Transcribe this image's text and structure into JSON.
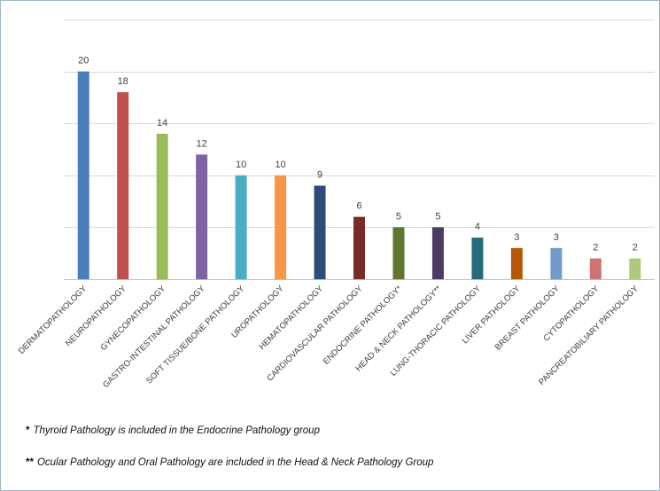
{
  "chart_data": {
    "type": "bar",
    "categories": [
      "DERMATOPATHOLOGY",
      "NEUROPATHOLOGY",
      "GYNECOPATHOLOGY",
      "GASTRO-INTESTINAL PATHOLOGY",
      "SOFT TISSUE/BONE PATHOLOGY",
      "UROPATHOLOGY",
      "HEMATOPATHOLOGY",
      "CARDIOVASCULAR PATHOLOGY",
      "ENDOCRINE PATHOLOGY*",
      "HEAD & NECK PATHOLOGY**",
      "LUNG-THORACIC PATHOLOGY",
      "LIVER PATHOLOGY",
      "BREAST PATHOLOGY",
      "CYTOPATHOLOGY",
      "PANCREATOBILIARY PATHOLOGY"
    ],
    "values": [
      20,
      18,
      14,
      12,
      10,
      10,
      9,
      6,
      5,
      5,
      4,
      3,
      3,
      2,
      2
    ],
    "colors": [
      "#4a7ebb",
      "#c0504d",
      "#9bbb59",
      "#8064a2",
      "#4bacc6",
      "#f79646",
      "#2c4d75",
      "#772c2a",
      "#5f7530",
      "#4d3b62",
      "#276a7c",
      "#b65708",
      "#729aca",
      "#cd7371",
      "#afc97a"
    ],
    "ylim": [
      0,
      25
    ],
    "gridlines": [
      5,
      10,
      15,
      20,
      25
    ],
    "grid": true,
    "legend": "none",
    "title": "",
    "xlabel": "",
    "ylabel": ""
  },
  "footnotes": [
    {
      "mark": "*",
      "text": "Thyroid Pathology is included in the Endocrine Pathology group"
    },
    {
      "mark": "**",
      "text": "Ocular Pathology and Oral Pathology are included in the Head & Neck Pathology Group"
    }
  ]
}
